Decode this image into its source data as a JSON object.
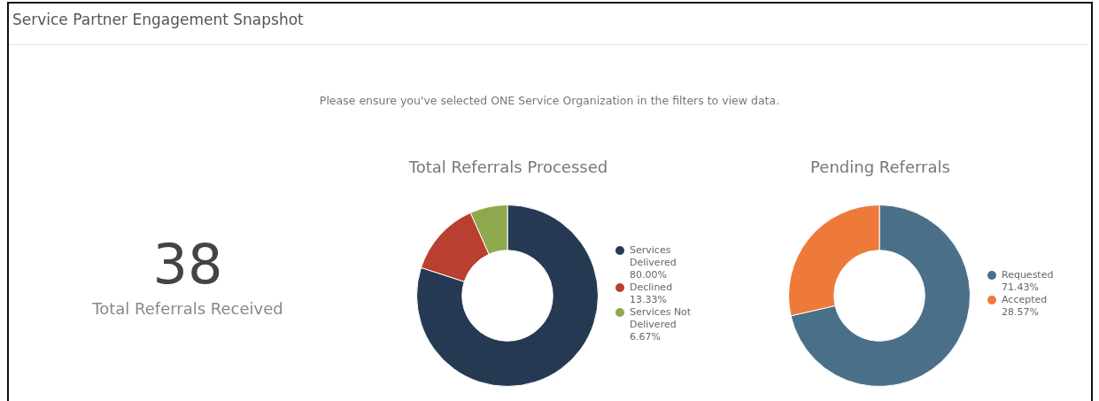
{
  "chart_data": [
    {
      "type": "other",
      "title": "Service Partner Engagement Snapshot",
      "annotations": [
        "Please ensure you've selected ONE Service Organization in the filters to view data.",
        "38",
        "Total Referrals Received"
      ]
    },
    {
      "type": "donut",
      "title": "Total Referrals Processed",
      "categories": [
        "Services Delivered",
        "Declined",
        "Services Not Delivered"
      ],
      "values": [
        80.0,
        13.33,
        6.67
      ],
      "value_labels": [
        "80.00%",
        "13.33%",
        "6.67%"
      ],
      "colors": [
        "#253a52",
        "#b94030",
        "#8fa84d"
      ],
      "legend": "right"
    },
    {
      "type": "donut",
      "title": "Pending Referrals",
      "categories": [
        "Requested",
        "Accepted"
      ],
      "values": [
        71.43,
        28.57
      ],
      "value_labels": [
        "71.43%",
        "28.57%"
      ],
      "colors": [
        "#4a7089",
        "#ee7a3a"
      ],
      "legend": "right"
    }
  ]
}
